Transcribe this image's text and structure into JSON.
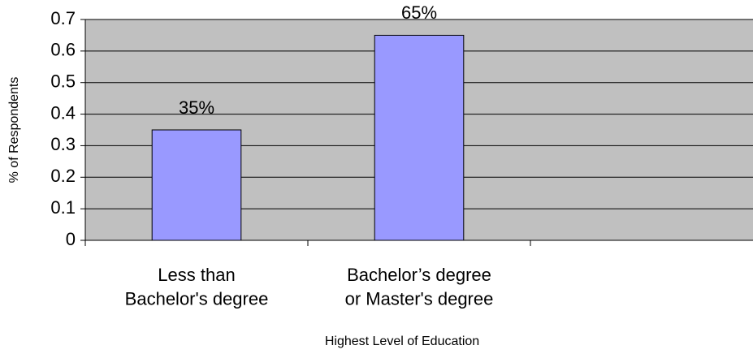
{
  "chart_data": {
    "type": "bar",
    "categories": [
      "Less than\nBachelor's degree",
      "Bachelor’s degree\nor Master's degree",
      null
    ],
    "values": [
      0.35,
      0.65,
      null
    ],
    "value_labels": [
      "35%",
      "65%",
      null
    ],
    "color": "#9999ff",
    "x_label": "Highest Level of Education",
    "y_label": "% of Respondents",
    "ylim": [
      0,
      0.7
    ],
    "yticks": [
      0,
      0.1,
      0.2,
      0.3,
      0.4,
      0.5,
      0.6,
      0.7
    ],
    "grid": true,
    "plot_background": "#c0c0c0"
  }
}
